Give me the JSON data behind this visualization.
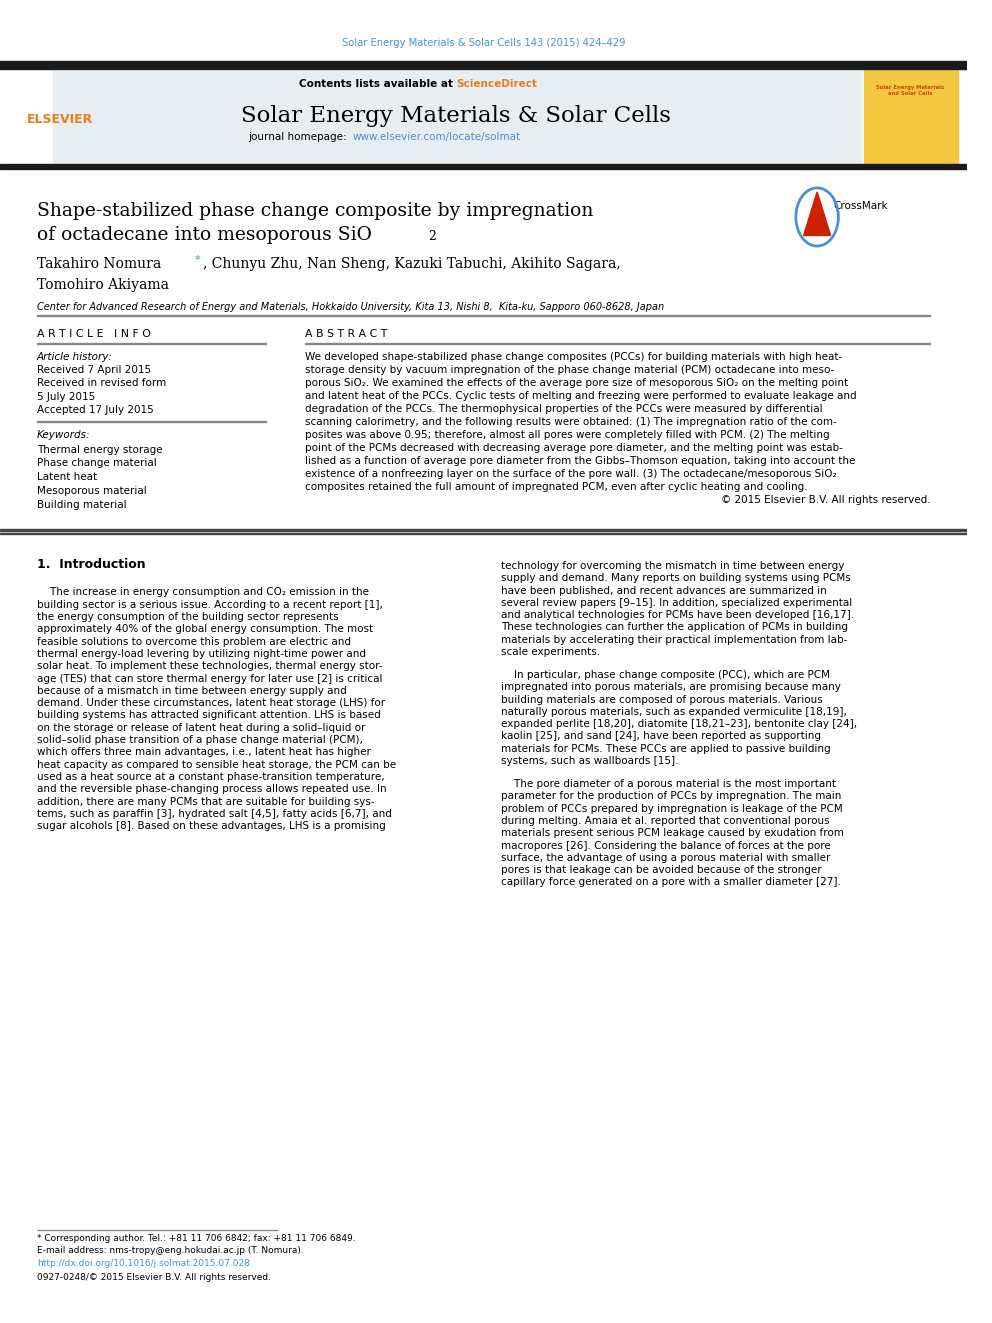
{
  "page_width": 9.92,
  "page_height": 13.23,
  "bg_color": "#ffffff",
  "top_journal_ref": "Solar Energy Materials & Solar Cells 143 (2015) 424–429",
  "top_ref_color": "#4a90d9",
  "header_bg": "#e8edf2",
  "journal_name": "Solar Energy Materials & Solar Cells",
  "sciencedirect_color": "#e87d1e",
  "journal_url": "www.elsevier.com/locate/solmat",
  "journal_url_color": "#4a90d9",
  "elsevier_orange": "#e87d1e",
  "dark_bar_color": "#1a1a1a",
  "article_title_line1": "Shape-stabilized phase change composite by impregnation",
  "article_title_line2": "of octadecane into mesoporous SiO",
  "article_title_sub": "2",
  "authors_line1": "Takahiro Nomura",
  "authors_rest": ", Chunyu Zhu, Nan Sheng, Kazuki Tabuchi, Akihito Sagara,",
  "authors_line2": "Tomohiro Akiyama",
  "affiliation": "Center for Advanced Research of Energy and Materials, Hokkaido University, Kita 13, Nishi 8,  Kita-ku, Sapporo 060-8628, Japan",
  "article_info_label": "A R T I C L E   I N F O",
  "abstract_label": "A B S T R A C T",
  "article_history_label": "Article history:",
  "received_1": "Received 7 April 2015",
  "received_2": "Received in revised form",
  "received_2b": "5 July 2015",
  "accepted": "Accepted 17 July 2015",
  "keywords_label": "Keywords:",
  "keywords": [
    "Thermal energy storage",
    "Phase change material",
    "Latent heat",
    "Mesoporous material",
    "Building material"
  ],
  "copyright_text": "© 2015 Elsevier B.V. All rights reserved.",
  "section1_title": "1.  Introduction",
  "footnote_text": "* Corresponding author. Tel.: +81 11 706 6842; fax: +81 11 706 6849.",
  "footnote_email": "E-mail address: nms-tropy@eng.hokudai.ac.jp (T. Nomura).",
  "footnote_doi": "http://dx.doi.org/10.1016/j.solmat.2015.07.028",
  "footnote_issn": "0927-0248/© 2015 Elsevier B.V. All rights reserved.",
  "link_color": "#4a90d9"
}
